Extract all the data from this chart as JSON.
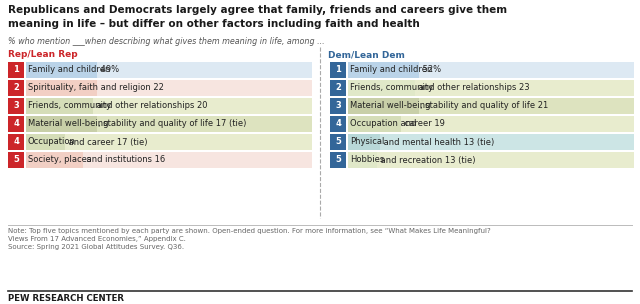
{
  "title_line1": "Republicans and Democrats largely agree that family, friends and careers give them",
  "title_line2": "meaning in life – but differ on other factors including faith and health",
  "subtitle": "% who mention ___when describing what gives them meaning in life, among ...",
  "rep_header": "Rep/Lean Rep",
  "dem_header": "Dem/Lean Dem",
  "rep_items": [
    {
      "rank": "1",
      "highlight": "Family and children",
      "rest": " 49%",
      "highlight_color": "#bad3e8",
      "bg_color": "#dde9f3"
    },
    {
      "rank": "2",
      "highlight": "Spirituality, faith",
      "rest": " and religion 22",
      "highlight_color": "#f2cfc4",
      "bg_color": "#f7e5e0"
    },
    {
      "rank": "3",
      "highlight": "Friends, community",
      "rest": " and other relationships 20",
      "highlight_color": "#d5ddb8",
      "bg_color": "#e8ecce"
    },
    {
      "rank": "4",
      "highlight": "Material well-being",
      "rest": ", stability and quality of life 17 (tie)",
      "highlight_color": "#c8cfa8",
      "bg_color": "#dde3bf"
    },
    {
      "rank": "4",
      "highlight": "Occupation",
      "rest": " and career 17 (tie)",
      "highlight_color": "#d5ddb8",
      "bg_color": "#e8ecce"
    },
    {
      "rank": "5",
      "highlight": "Society, places",
      "rest": " and institutions 16",
      "highlight_color": "#f2cfc4",
      "bg_color": "#f7e5e0"
    }
  ],
  "dem_items": [
    {
      "rank": "1",
      "highlight": "Family and children",
      "rest": " 52%",
      "highlight_color": "#bad3e8",
      "bg_color": "#dde9f3"
    },
    {
      "rank": "2",
      "highlight": "Friends, community",
      "rest": " and other relationships 23",
      "highlight_color": "#e0e8c8",
      "bg_color": "#e8ecce"
    },
    {
      "rank": "3",
      "highlight": "Material well-being",
      "rest": ", stability and quality of life 21",
      "highlight_color": "#c8cfa8",
      "bg_color": "#dde3bf"
    },
    {
      "rank": "4",
      "highlight": "Occupation and",
      "rest": " career 19",
      "highlight_color": "#d5ddb8",
      "bg_color": "#e8ecce"
    },
    {
      "rank": "5",
      "highlight": "Physical",
      "rest": " and mental health 13 (tie)",
      "highlight_color": "#b8d8d8",
      "bg_color": "#cce5e5"
    },
    {
      "rank": "5",
      "highlight": "Hobbies",
      "rest": " and recreation 13 (tie)",
      "highlight_color": "#e0e8c8",
      "bg_color": "#e8ecce"
    }
  ],
  "rank_box_color_rep": "#cc2529",
  "rank_box_color_dem": "#336699",
  "note": "Note: Top five topics mentioned by each party are shown. Open-ended question. For more information, see “What Makes Life Meaningful?\nViews From 17 Advanced Economies,” Appendix C.\nSource: Spring 2021 Global Attitudes Survey. Q36.",
  "footer": "PEW RESEARCH CENTER",
  "bg_color": "#ffffff",
  "title_color": "#1a1a1a",
  "subtitle_color": "#555555",
  "header_color_rep": "#cc2529",
  "header_color_dem": "#336699",
  "text_color": "#222222",
  "note_color": "#666666"
}
